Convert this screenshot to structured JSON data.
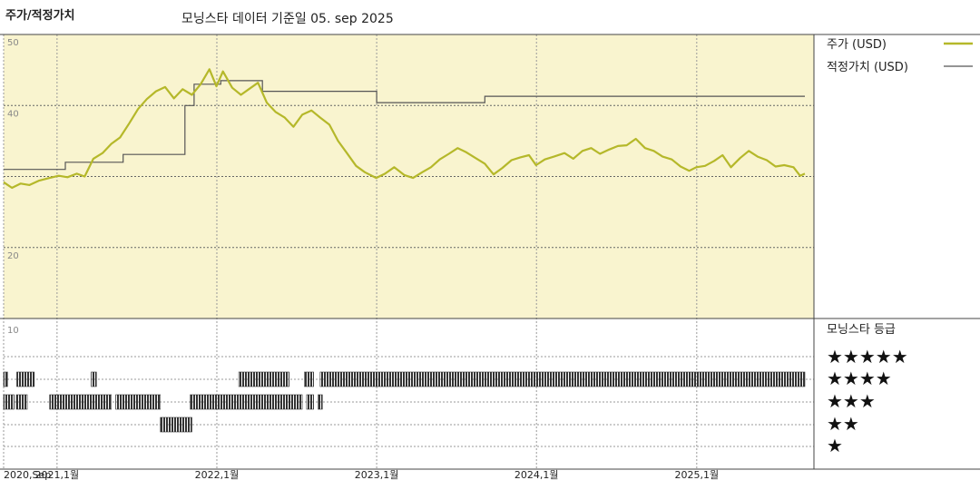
{
  "header": {
    "title": "주가/적정가치",
    "subtitle": "모닝스타 데이터 기준일 05. sep 2025"
  },
  "colors": {
    "price_line": "#b5b82a",
    "fair_value_line": "#555555",
    "upper_bg": "#f9f4cf",
    "rating_bar": "#333333"
  },
  "legend": {
    "price_label": "주가 (USD)",
    "fair_value_label": "적정가치 (USD)",
    "rating_title": "모닝스타 등급"
  },
  "star_labels": [
    "★★★★★",
    "★★★★",
    "★★★",
    "★★",
    "★"
  ],
  "chart_data": [
    {
      "type": "line",
      "y_ticks": [
        "50",
        "40",
        "20",
        "10"
      ],
      "x_tick_labels": [
        "2020,Sep",
        "2021,1월",
        "2022,1월",
        "2023,1월",
        "2024,1월",
        "2025,1월"
      ],
      "x_tick_dates": [
        "2020-09-01",
        "2021-01-01",
        "2022-01-01",
        "2023-01-01",
        "2024-01-01",
        "2025-01-01"
      ],
      "xlim": [
        "2020-09-01",
        "2025-09-05"
      ],
      "ylim": [
        10,
        50
      ],
      "grid": true,
      "legend_position": "right",
      "series": [
        {
          "name": "주가 (USD)",
          "points": [
            [
              "2020-09-01",
              29.2
            ],
            [
              "2020-09-20",
              28.4
            ],
            [
              "2020-10-10",
              29.0
            ],
            [
              "2020-10-30",
              28.8
            ],
            [
              "2020-11-20",
              29.4
            ],
            [
              "2020-12-15",
              29.8
            ],
            [
              "2021-01-05",
              30.1
            ],
            [
              "2021-01-25",
              29.9
            ],
            [
              "2021-02-15",
              30.4
            ],
            [
              "2021-03-05",
              30.0
            ],
            [
              "2021-03-25",
              32.5
            ],
            [
              "2021-04-15",
              33.3
            ],
            [
              "2021-05-05",
              34.6
            ],
            [
              "2021-05-25",
              35.5
            ],
            [
              "2021-06-15",
              37.5
            ],
            [
              "2021-07-05",
              39.5
            ],
            [
              "2021-07-25",
              40.9
            ],
            [
              "2021-08-15",
              42.0
            ],
            [
              "2021-09-05",
              42.6
            ],
            [
              "2021-09-25",
              41.0
            ],
            [
              "2021-10-15",
              42.3
            ],
            [
              "2021-11-05",
              41.5
            ],
            [
              "2021-11-25",
              43.0
            ],
            [
              "2021-12-15",
              45.1
            ],
            [
              "2021-12-31",
              42.7
            ],
            [
              "2022-01-15",
              44.8
            ],
            [
              "2022-02-05",
              42.5
            ],
            [
              "2022-02-25",
              41.5
            ],
            [
              "2022-03-15",
              42.3
            ],
            [
              "2022-04-05",
              43.2
            ],
            [
              "2022-04-25",
              40.4
            ],
            [
              "2022-05-15",
              39.1
            ],
            [
              "2022-06-05",
              38.3
            ],
            [
              "2022-06-25",
              37.0
            ],
            [
              "2022-07-15",
              38.7
            ],
            [
              "2022-08-05",
              39.3
            ],
            [
              "2022-08-25",
              38.3
            ],
            [
              "2022-09-15",
              37.3
            ],
            [
              "2022-10-05",
              35.0
            ],
            [
              "2022-10-25",
              33.3
            ],
            [
              "2022-11-15",
              31.5
            ],
            [
              "2022-12-05",
              30.6
            ],
            [
              "2022-12-31",
              29.8
            ],
            [
              "2023-01-20",
              30.4
            ],
            [
              "2023-02-10",
              31.3
            ],
            [
              "2023-03-05",
              30.2
            ],
            [
              "2023-03-25",
              29.8
            ],
            [
              "2023-04-15",
              30.6
            ],
            [
              "2023-05-05",
              31.3
            ],
            [
              "2023-05-25",
              32.4
            ],
            [
              "2023-06-15",
              33.2
            ],
            [
              "2023-07-05",
              34.0
            ],
            [
              "2023-07-25",
              33.4
            ],
            [
              "2023-08-15",
              32.6
            ],
            [
              "2023-09-05",
              31.8
            ],
            [
              "2023-09-25",
              30.3
            ],
            [
              "2023-10-15",
              31.2
            ],
            [
              "2023-11-05",
              32.3
            ],
            [
              "2023-11-25",
              32.7
            ],
            [
              "2023-12-15",
              33.0
            ],
            [
              "2023-12-31",
              31.6
            ],
            [
              "2024-01-20",
              32.4
            ],
            [
              "2024-02-10",
              32.8
            ],
            [
              "2024-03-05",
              33.3
            ],
            [
              "2024-03-25",
              32.5
            ],
            [
              "2024-04-15",
              33.6
            ],
            [
              "2024-05-05",
              34.0
            ],
            [
              "2024-05-25",
              33.2
            ],
            [
              "2024-06-15",
              33.8
            ],
            [
              "2024-07-05",
              34.3
            ],
            [
              "2024-07-25",
              34.4
            ],
            [
              "2024-08-15",
              35.3
            ],
            [
              "2024-09-05",
              34.0
            ],
            [
              "2024-09-25",
              33.6
            ],
            [
              "2024-10-15",
              32.8
            ],
            [
              "2024-11-05",
              32.4
            ],
            [
              "2024-11-25",
              31.4
            ],
            [
              "2024-12-15",
              30.8
            ],
            [
              "2024-12-31",
              31.3
            ],
            [
              "2025-01-20",
              31.5
            ],
            [
              "2025-02-10",
              32.2
            ],
            [
              "2025-03-01",
              33.0
            ],
            [
              "2025-03-20",
              31.3
            ],
            [
              "2025-04-10",
              32.6
            ],
            [
              "2025-04-30",
              33.6
            ],
            [
              "2025-05-20",
              32.8
            ],
            [
              "2025-06-10",
              32.3
            ],
            [
              "2025-06-30",
              31.4
            ],
            [
              "2025-07-20",
              31.6
            ],
            [
              "2025-08-10",
              31.3
            ],
            [
              "2025-08-25",
              30.1
            ],
            [
              "2025-09-05",
              30.4
            ]
          ]
        },
        {
          "name": "적정가치 (USD)",
          "step": true,
          "points": [
            [
              "2020-09-01",
              31.0
            ],
            [
              "2021-01-20",
              31.0
            ],
            [
              "2021-01-20",
              32.0
            ],
            [
              "2021-06-01",
              32.0
            ],
            [
              "2021-06-01",
              33.1
            ],
            [
              "2021-10-20",
              33.1
            ],
            [
              "2021-10-20",
              40.0
            ],
            [
              "2021-11-10",
              40.0
            ],
            [
              "2021-11-10",
              43.0
            ],
            [
              "2022-01-10",
              43.0
            ],
            [
              "2022-01-10",
              43.5
            ],
            [
              "2022-04-15",
              43.5
            ],
            [
              "2022-04-15",
              42.0
            ],
            [
              "2023-01-01",
              42.0
            ],
            [
              "2023-01-01",
              40.4
            ],
            [
              "2023-09-05",
              40.4
            ],
            [
              "2023-09-05",
              41.3
            ],
            [
              "2025-09-05",
              41.3
            ]
          ]
        }
      ]
    },
    {
      "type": "rating_timeline",
      "title": "모닝스타 등급",
      "y_tick": "10",
      "levels": [
        "5 stars",
        "4 stars",
        "3 stars",
        "2 stars",
        "1 star"
      ],
      "rating_periods": [
        {
          "stars": 4,
          "start": "2020-09-01",
          "end": "2020-09-10"
        },
        {
          "stars": 4,
          "start": "2020-10-01",
          "end": "2020-11-10"
        },
        {
          "stars": 4,
          "start": "2021-03-20",
          "end": "2021-04-01"
        },
        {
          "stars": 4,
          "start": "2022-02-20",
          "end": "2022-06-15"
        },
        {
          "stars": 4,
          "start": "2022-07-20",
          "end": "2022-08-10"
        },
        {
          "stars": 4,
          "start": "2022-08-25",
          "end": "2025-09-05"
        },
        {
          "stars": 3,
          "start": "2020-09-01",
          "end": "2020-09-25"
        },
        {
          "stars": 3,
          "start": "2020-09-30",
          "end": "2020-10-25"
        },
        {
          "stars": 3,
          "start": "2020-12-15",
          "end": "2021-05-05"
        },
        {
          "stars": 3,
          "start": "2021-05-15",
          "end": "2021-08-25"
        },
        {
          "stars": 3,
          "start": "2021-11-01",
          "end": "2022-07-15"
        },
        {
          "stars": 3,
          "start": "2022-07-25",
          "end": "2022-08-10"
        },
        {
          "stars": 3,
          "start": "2022-08-20",
          "end": "2022-08-30"
        },
        {
          "stars": 2,
          "start": "2021-08-25",
          "end": "2021-11-05"
        }
      ]
    }
  ]
}
